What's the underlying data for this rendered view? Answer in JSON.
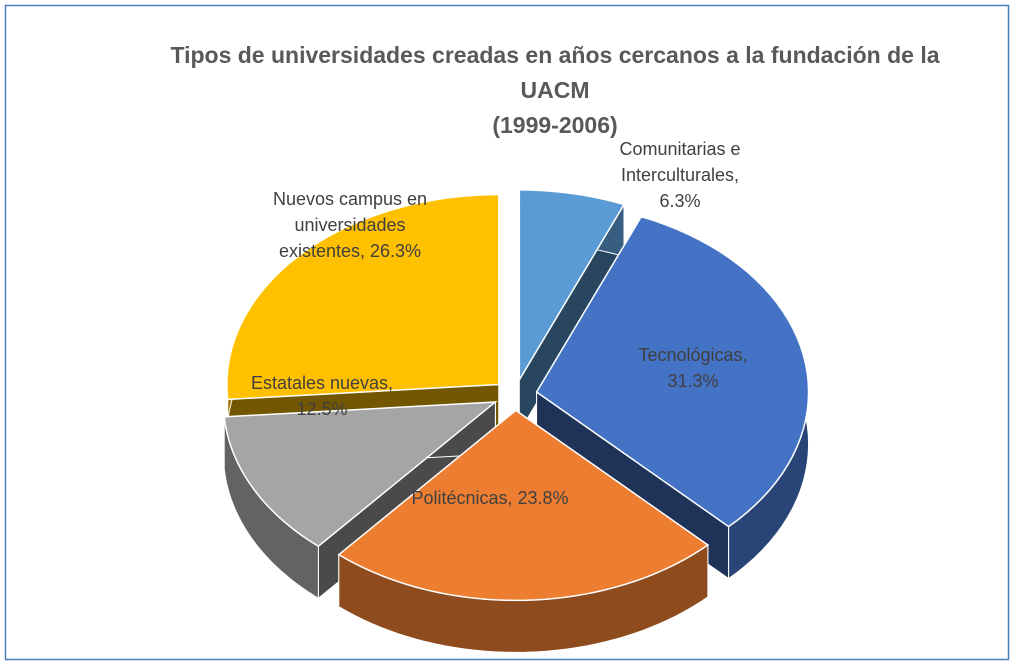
{
  "chart_data": {
    "type": "pie",
    "title": "Tipos de universidades creadas en años cercanos a la fundación de la UACM\n(1999-2006)",
    "categories": [
      "Comunitarias e Interculturales,",
      "Tecnológicas,",
      "Politécnicas,",
      "Estatales nuevas,",
      "Nuevos campus en universidades existentes,"
    ],
    "values": [
      6.3,
      31.3,
      23.8,
      12.5,
      26.3
    ],
    "value_labels": [
      "6.3%",
      "31.3%",
      "23.8%",
      "12.5%",
      "26.3%"
    ],
    "colors": [
      "#5b9bd5",
      "#4472c4",
      "#ed7d31",
      "#a5a5a5",
      "#ffc000"
    ]
  }
}
